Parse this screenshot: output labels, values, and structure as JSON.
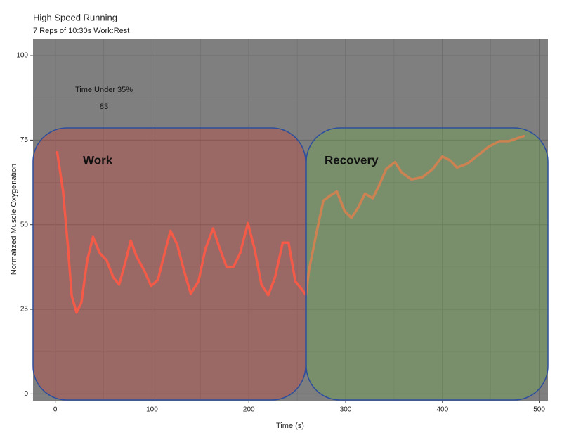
{
  "chart_data": {
    "type": "line",
    "title": "High Speed Running",
    "subtitle": "7 Reps of 10:30s Work:Rest",
    "x_label": "Time (s)",
    "y_label": "Normalized Muscle Oxygenation",
    "annotations": [
      "Time Under 35%",
      83,
      "Work",
      "Recovery"
    ],
    "x": [
      2,
      8,
      13,
      17,
      22,
      27,
      33,
      39,
      46,
      53,
      60,
      66,
      72,
      78,
      84,
      92,
      99,
      106,
      113,
      119,
      126,
      133,
      140,
      148,
      155,
      163,
      169,
      177,
      184,
      191,
      199,
      206,
      213,
      220,
      227,
      235,
      241,
      248,
      255,
      259,
      262,
      270,
      277,
      284,
      291,
      299,
      306,
      313,
      320,
      328,
      335,
      342,
      351,
      358,
      368,
      379,
      390,
      400,
      408,
      415,
      426,
      437,
      448,
      459,
      469,
      484
    ],
    "series": [
      {
        "color": "#ff6a55",
        "values": [
          71.4,
          60,
          43.7,
          29,
          24,
          27,
          39.5,
          46.4,
          41.6,
          39.5,
          34.4,
          32.3,
          38.5,
          45.3,
          40.6,
          36.4,
          31.9,
          33.7,
          41.6,
          48.2,
          44.1,
          36.4,
          29.6,
          33.3,
          42.7,
          48.9,
          43.7,
          37.5,
          37.5,
          41.6,
          50.5,
          42.7,
          32.3,
          29.2,
          34.4,
          44.7,
          44.7,
          33.3,
          30.8,
          29.2,
          36.4,
          47.8,
          57.1,
          58.6,
          59.8,
          54,
          52,
          55.1,
          59.2,
          57.8,
          61.9,
          66.5,
          68.5,
          65.4,
          63.4,
          64,
          66.5,
          70.2,
          69,
          66.9,
          68.1,
          70.6,
          73.1,
          74.7,
          74.7,
          76.2
        ]
      }
    ],
    "xlim": [
      -23,
      509
    ],
    "xticks": [
      0,
      100,
      200,
      300,
      400,
      500
    ],
    "ylim": [
      -2,
      105
    ],
    "yticks": [
      0,
      25,
      50,
      75,
      100
    ],
    "grid": true
  }
}
